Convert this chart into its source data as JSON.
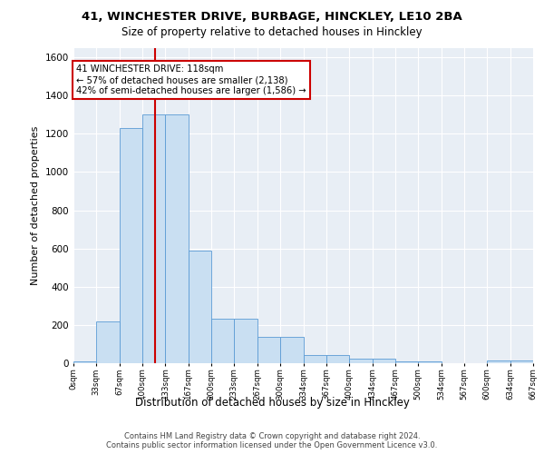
{
  "title1": "41, WINCHESTER DRIVE, BURBAGE, HINCKLEY, LE10 2BA",
  "title2": "Size of property relative to detached houses in Hinckley",
  "xlabel": "Distribution of detached houses by size in Hinckley",
  "ylabel": "Number of detached properties",
  "footer": "Contains HM Land Registry data © Crown copyright and database right 2024.\nContains public sector information licensed under the Open Government Licence v3.0.",
  "bin_edges": [
    0,
    33,
    67,
    100,
    133,
    167,
    200,
    233,
    267,
    300,
    334,
    367,
    400,
    434,
    467,
    500,
    534,
    567,
    600,
    634,
    667
  ],
  "bar_heights": [
    10,
    220,
    1230,
    1300,
    1300,
    590,
    235,
    235,
    140,
    140,
    45,
    45,
    25,
    25,
    10,
    10,
    0,
    0,
    15,
    15
  ],
  "bar_color": "#c9dff2",
  "bar_edge_color": "#5b9bd5",
  "property_size": 118,
  "vline_color": "#cc0000",
  "annotation_text": "41 WINCHESTER DRIVE: 118sqm\n← 57% of detached houses are smaller (2,138)\n42% of semi-detached houses are larger (1,586) →",
  "annotation_box_color": "#ffffff",
  "annotation_box_edge": "#cc0000",
  "ylim": [
    0,
    1650
  ],
  "yticks": [
    0,
    200,
    400,
    600,
    800,
    1000,
    1200,
    1400,
    1600
  ],
  "background_color": "#e8eef5"
}
